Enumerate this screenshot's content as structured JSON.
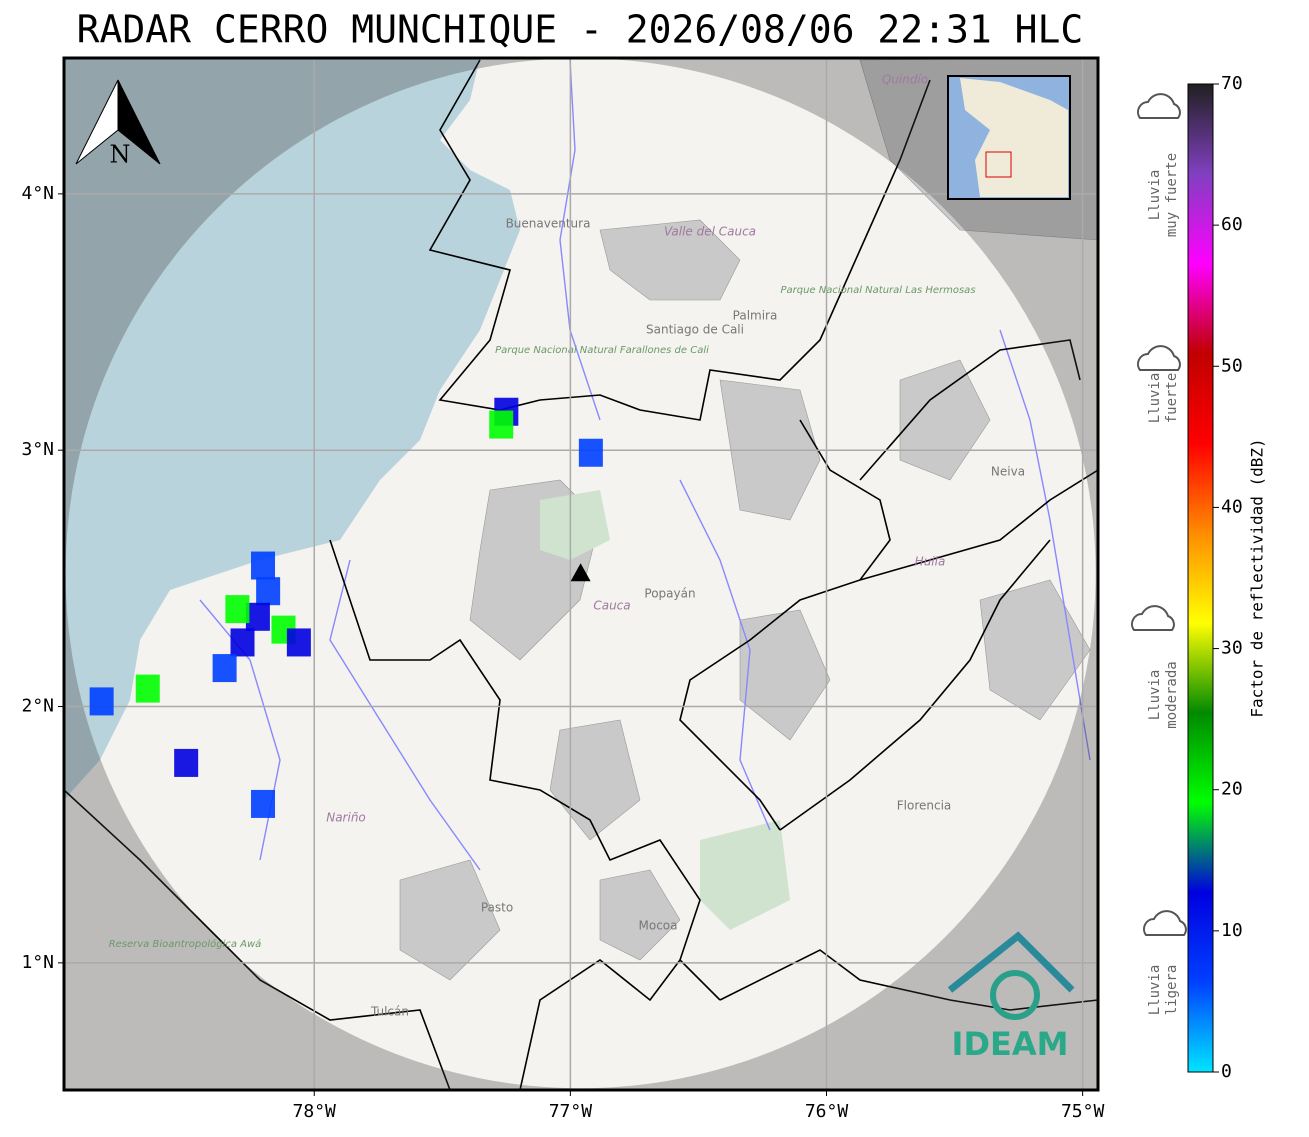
{
  "chart_data": {
    "type": "radar-map",
    "title": "RADAR CERRO MUNCHIQUE - 2026/08/06 22:31 HLC",
    "xlim": [
      -78.977,
      -74.94
    ],
    "ylim": [
      0.504,
      4.53
    ],
    "xticks": [
      {
        "value": -78,
        "label": "78°W"
      },
      {
        "value": -77,
        "label": "77°W"
      },
      {
        "value": -76,
        "label": "76°W"
      },
      {
        "value": -75,
        "label": "75°W"
      }
    ],
    "yticks": [
      {
        "value": 1,
        "label": "1°N"
      },
      {
        "value": 2,
        "label": "2°N"
      },
      {
        "value": 3,
        "label": "3°N"
      },
      {
        "value": 4,
        "label": "4°N"
      }
    ],
    "grid": true,
    "north": "N",
    "radar": {
      "lon": -76.96,
      "lat": 2.52
    },
    "places": [
      "Buenaventura",
      "Valle del Cauca",
      "Parque Nacional Natural Farallones de Cali",
      "Santiago de Cali",
      "Palmira",
      "Parque Nacional Natural Las Hermosas",
      "Neiva",
      "Huila",
      "Cauca",
      "Popayán",
      "Nariño",
      "Pasto",
      "Mocoa",
      "Florencia",
      "Tulcán",
      "Reserva Bioantropológica Awá",
      "Quindío"
    ],
    "logo": "IDEAM",
    "echoes": [
      {
        "lon": -78.18,
        "lat": 2.45,
        "dbz": 9
      },
      {
        "lon": -78.22,
        "lat": 2.35,
        "dbz": 10
      },
      {
        "lon": -78.28,
        "lat": 2.25,
        "dbz": 11
      },
      {
        "lon": -78.12,
        "lat": 2.3,
        "dbz": 16
      },
      {
        "lon": -78.35,
        "lat": 2.15,
        "dbz": 9
      },
      {
        "lon": -78.06,
        "lat": 2.25,
        "dbz": 12
      },
      {
        "lon": -78.3,
        "lat": 2.38,
        "dbz": 17
      },
      {
        "lon": -78.2,
        "lat": 2.55,
        "dbz": 8
      },
      {
        "lon": -78.5,
        "lat": 1.78,
        "dbz": 10
      },
      {
        "lon": -78.65,
        "lat": 2.07,
        "dbz": 17
      },
      {
        "lon": -78.83,
        "lat": 2.02,
        "dbz": 8
      },
      {
        "lon": -77.25,
        "lat": 3.15,
        "dbz": 11
      },
      {
        "lon": -77.27,
        "lat": 3.1,
        "dbz": 18
      },
      {
        "lon": -76.92,
        "lat": 2.99,
        "dbz": 6
      },
      {
        "lon": -78.2,
        "lat": 1.62,
        "dbz": 7
      }
    ],
    "colorbar": {
      "label": "Factor de reflectividad (dBZ)",
      "lim": [
        0,
        70
      ],
      "ticks": [
        0,
        10,
        20,
        30,
        40,
        50,
        60,
        70
      ],
      "colors": [
        "#00e5ff",
        "#0040ff",
        "#0000e0",
        "#00ff00",
        "#008a00",
        "#ffff00",
        "#ff8c00",
        "#ff0000",
        "#c00000",
        "#ff00ff",
        "#8040c0",
        "#202020"
      ]
    },
    "rain_levels": [
      {
        "lines": [
          "Lluvia",
          "muy fuerte"
        ]
      },
      {
        "lines": [
          "Lluvia",
          "fuerte"
        ]
      },
      {
        "lines": [
          "Lluvia",
          "moderada"
        ]
      },
      {
        "lines": [
          "Lluvia",
          "ligera"
        ]
      }
    ]
  }
}
